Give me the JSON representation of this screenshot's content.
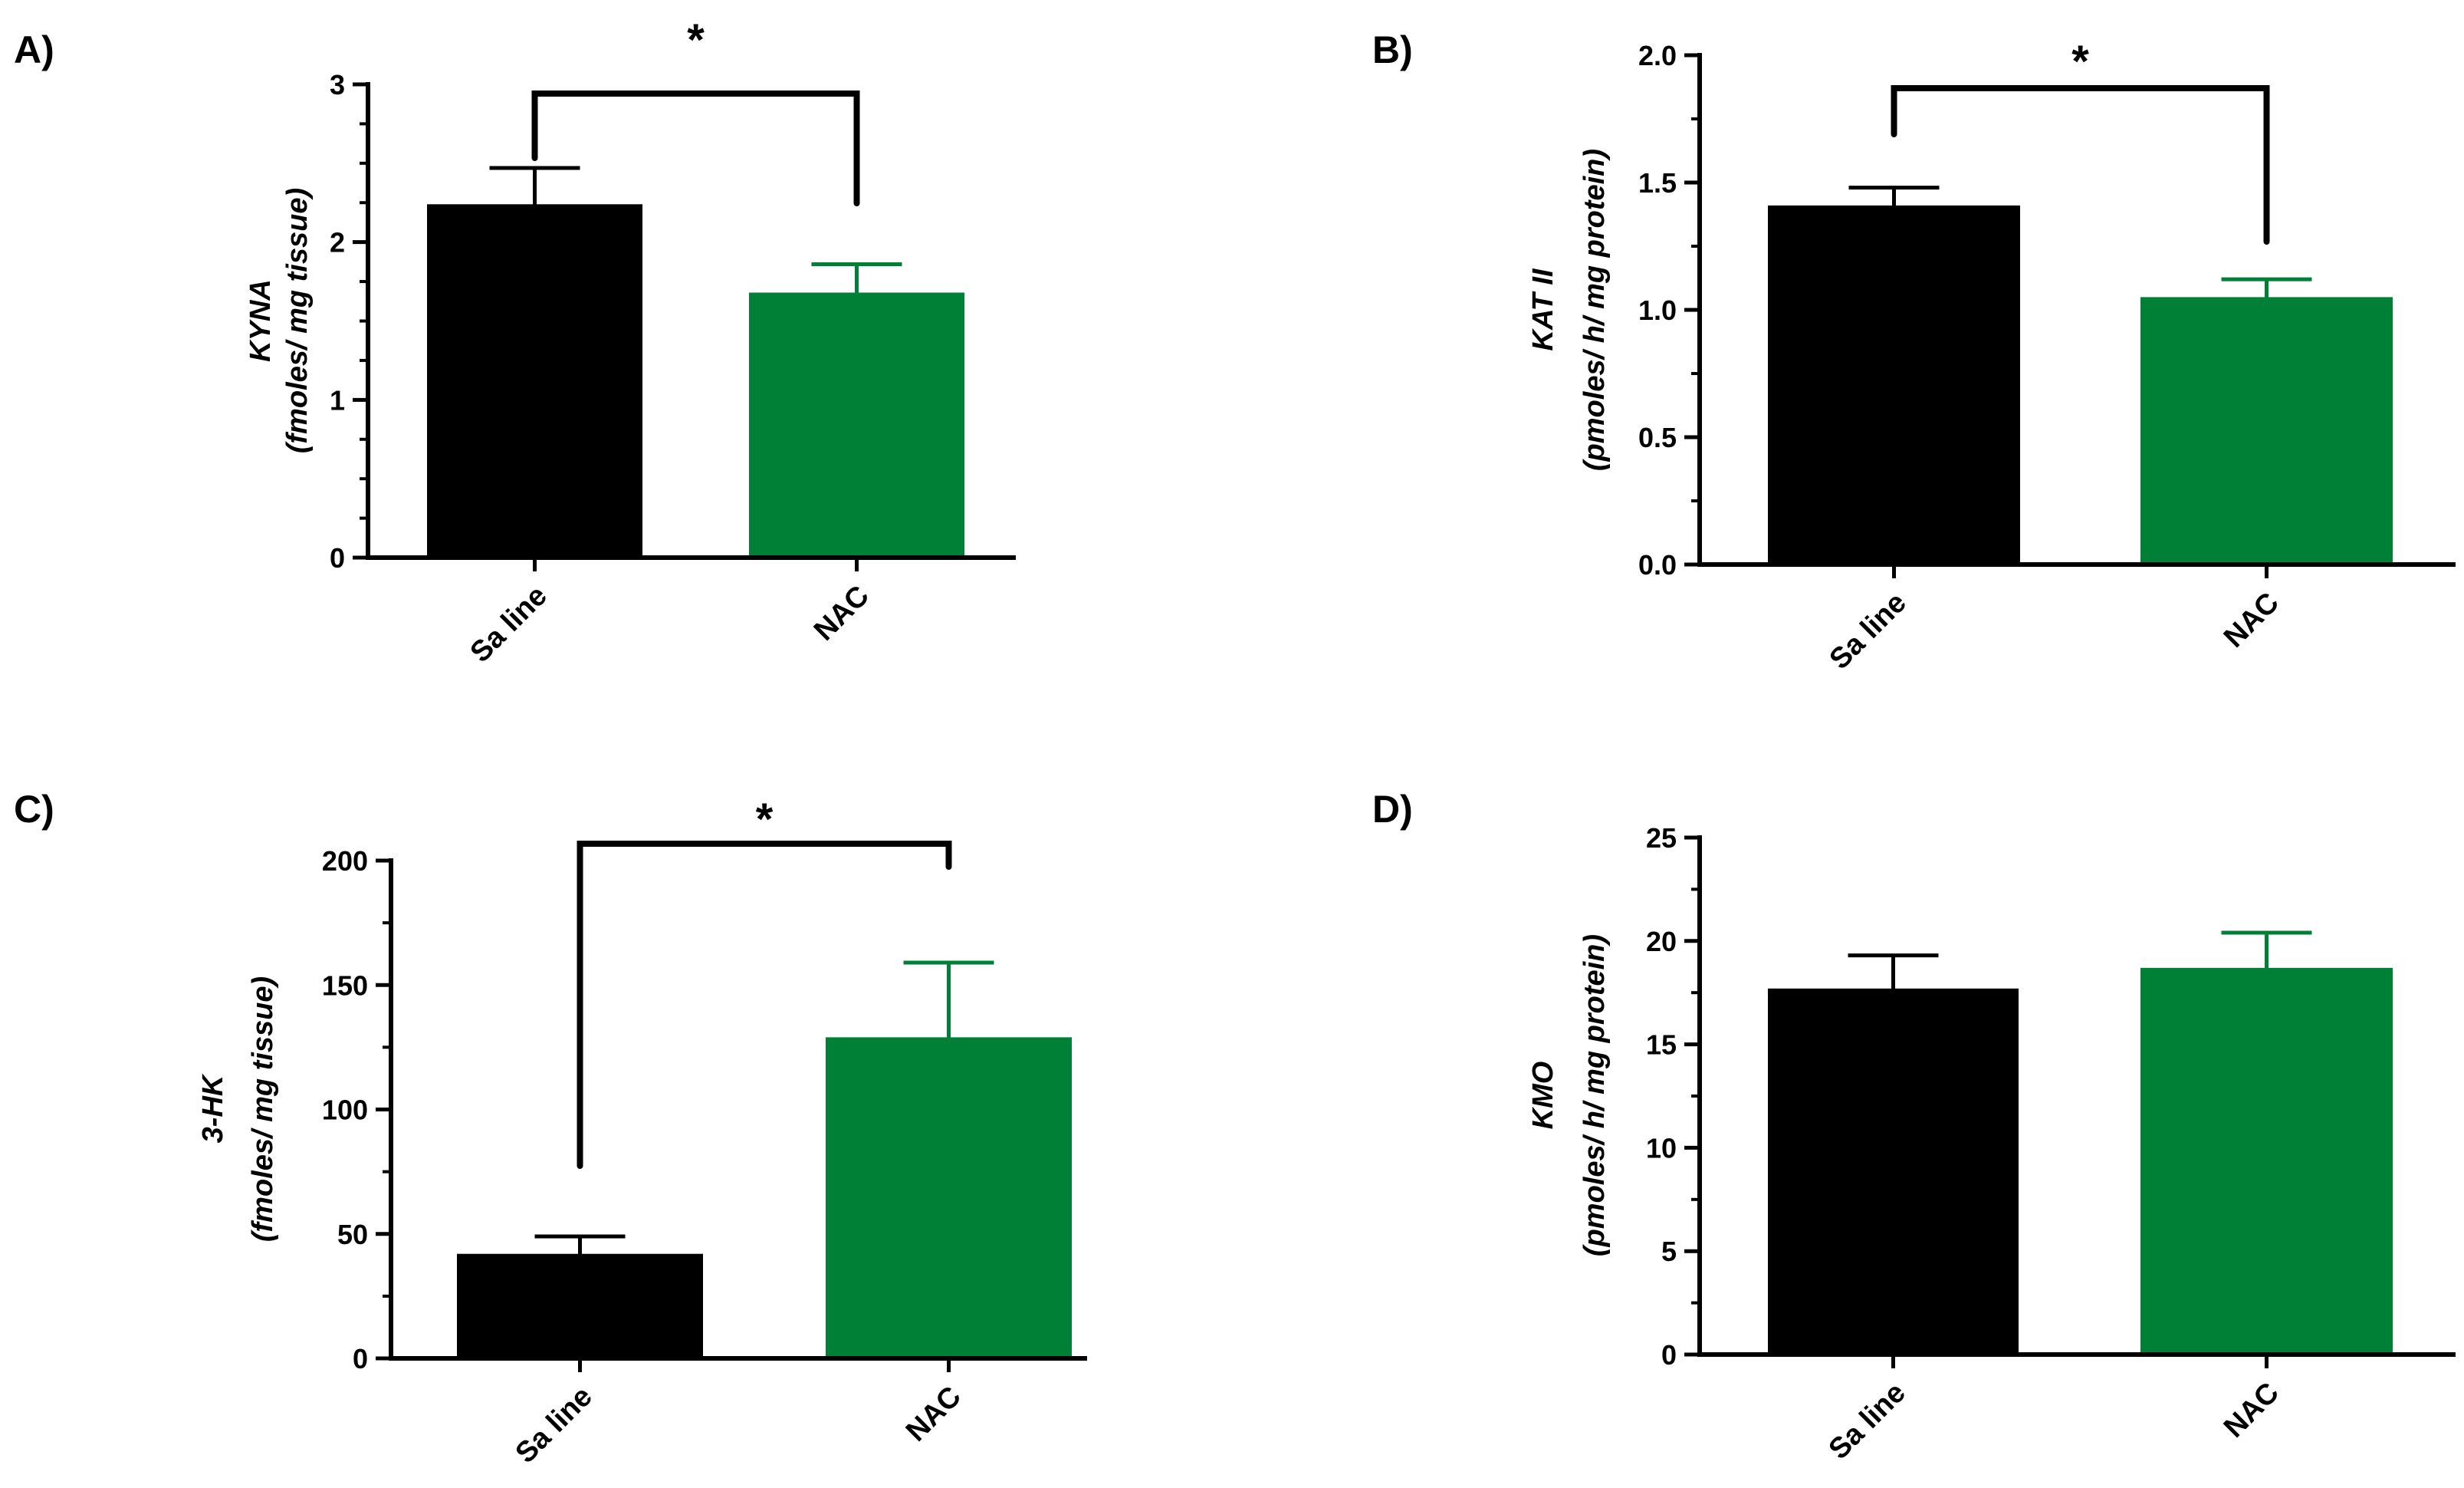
{
  "figure": {
    "colors": {
      "saline": "#000000",
      "nac": "#008037",
      "axis": "#000000"
    }
  },
  "chart_data": [
    {
      "panel": "A)",
      "type": "bar",
      "categories": [
        "Sa line",
        "NAC"
      ],
      "values": [
        2.24,
        1.68
      ],
      "errors": [
        0.23,
        0.18
      ],
      "ylabel_line1": "KYNA",
      "ylabel_line2": "(fmoles/ mg tissue)",
      "ylim": [
        0,
        3
      ],
      "major_ticks": [
        0,
        1,
        2,
        3
      ],
      "tick_labels": [
        "0",
        "1",
        "2",
        "3"
      ],
      "minor_step": 0.25,
      "significance": {
        "label": "*",
        "from": 0,
        "to": 1
      }
    },
    {
      "panel": "B)",
      "type": "bar",
      "categories": [
        "Sa line",
        "NAC"
      ],
      "values": [
        1.41,
        1.05
      ],
      "errors": [
        0.07,
        0.07
      ],
      "ylabel_line1": "KAT II",
      "ylabel_line2": "(pmoles/ h/ mg protein)",
      "ylim": [
        0,
        2
      ],
      "major_ticks": [
        0,
        0.5,
        1,
        1.5,
        2
      ],
      "tick_labels": [
        "0.0",
        "0.5",
        "1.0",
        "1.5",
        "2.0"
      ],
      "minor_step": 0.25,
      "significance": {
        "label": "*",
        "from": 0,
        "to": 1
      }
    },
    {
      "panel": "C)",
      "type": "bar",
      "categories": [
        "Sa line",
        "NAC"
      ],
      "values": [
        42,
        129
      ],
      "errors": [
        7,
        30
      ],
      "ylabel_line1": "3-HK",
      "ylabel_line2": "(fmoles/ mg tissue)",
      "ylim": [
        0,
        200
      ],
      "major_ticks": [
        0,
        50,
        100,
        150,
        200
      ],
      "tick_labels": [
        "0",
        "50",
        "100",
        "150",
        "200"
      ],
      "minor_step": 25,
      "significance": {
        "label": "*",
        "from": 0,
        "to": 1
      }
    },
    {
      "panel": "D)",
      "type": "bar",
      "categories": [
        "Sa line",
        "NAC"
      ],
      "values": [
        17.7,
        18.7
      ],
      "errors": [
        1.6,
        1.7
      ],
      "ylabel_line1": "KMO",
      "ylabel_line2": "(pmoles/ h/ mg protein)",
      "ylim": [
        0,
        25
      ],
      "major_ticks": [
        0,
        5,
        10,
        15,
        20,
        25
      ],
      "tick_labels": [
        "0",
        "5",
        "10",
        "15",
        "20",
        "25"
      ],
      "minor_step": 2.5,
      "significance": null
    }
  ]
}
